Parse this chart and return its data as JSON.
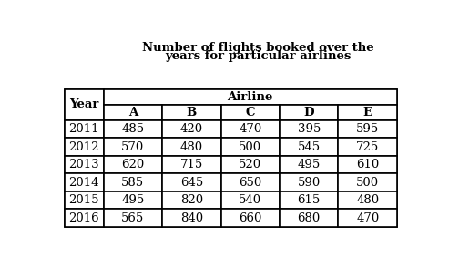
{
  "title_line1": "Number of flights booked over the",
  "title_line2": "years for particular airlines",
  "col_header_main": "Airline",
  "col_headers_sub": [
    "A",
    "B",
    "C",
    "D",
    "E"
  ],
  "year_header": "Year",
  "rows": [
    [
      "2011",
      "485",
      "420",
      "470",
      "395",
      "595"
    ],
    [
      "2012",
      "570",
      "480",
      "500",
      "545",
      "725"
    ],
    [
      "2013",
      "620",
      "715",
      "520",
      "495",
      "610"
    ],
    [
      "2014",
      "585",
      "645",
      "650",
      "590",
      "500"
    ],
    [
      "2015",
      "495",
      "820",
      "540",
      "615",
      "480"
    ],
    [
      "2016",
      "565",
      "840",
      "660",
      "680",
      "470"
    ]
  ],
  "bg_color": "#ffffff",
  "title_fontsize": 9.5,
  "header_fontsize": 9.5,
  "cell_fontsize": 9.5,
  "lw": 1.2
}
